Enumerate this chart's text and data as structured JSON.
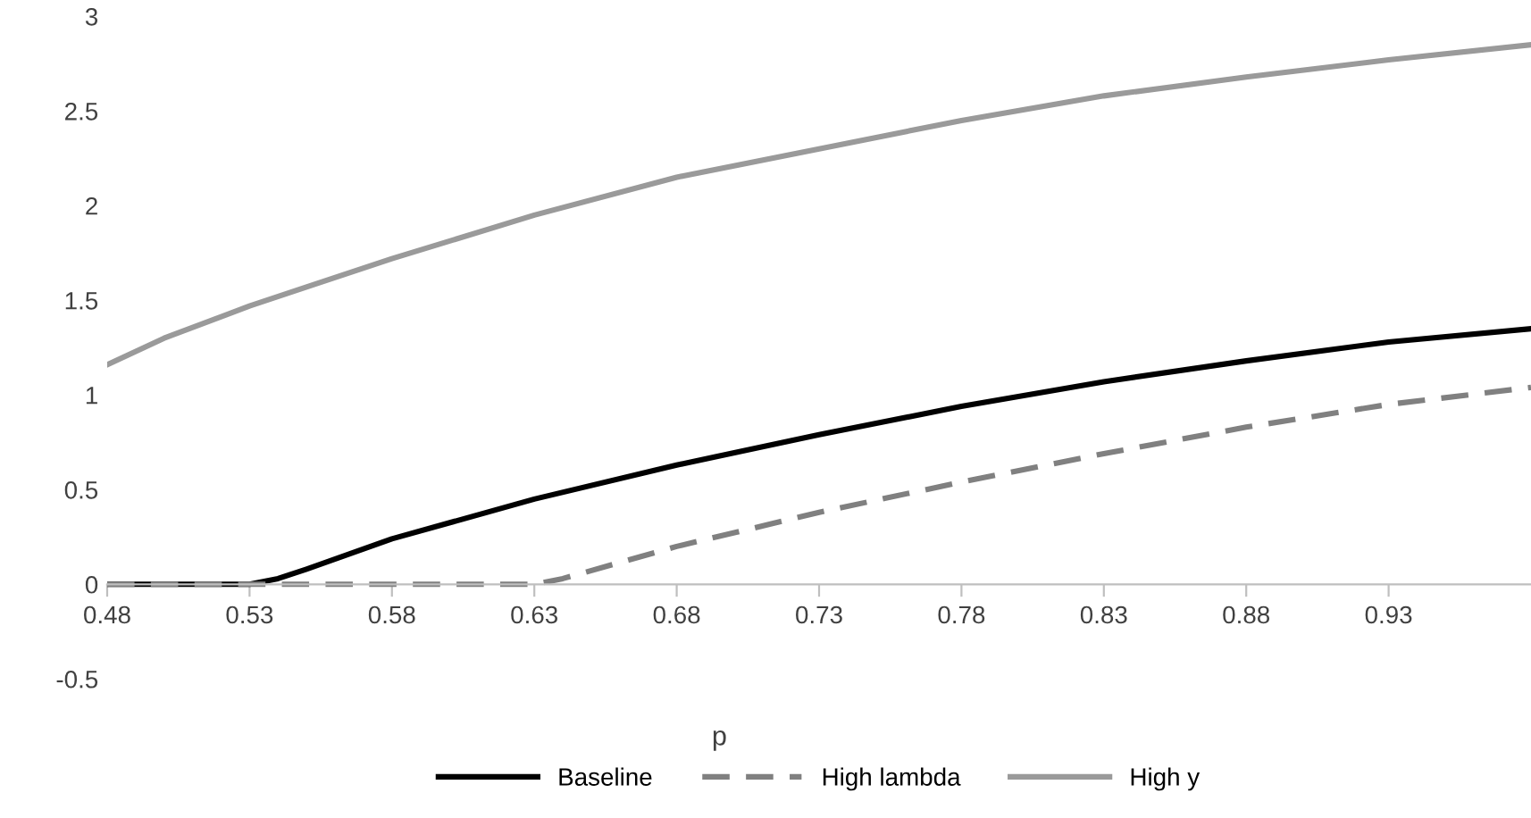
{
  "chart_data": {
    "type": "line",
    "xlabel": "p",
    "xlim": [
      0.48,
      0.98
    ],
    "xticks": [
      0.48,
      0.53,
      0.58,
      0.63,
      0.68,
      0.73,
      0.78,
      0.83,
      0.88,
      0.93
    ],
    "ylim": [
      -0.5,
      3
    ],
    "yticks": [
      -0.5,
      0,
      0.5,
      1,
      1.5,
      2,
      2.5,
      3
    ],
    "grid": false,
    "legend": "bottom",
    "series": [
      {
        "name": "Baseline",
        "color": "#000000",
        "line_style": "solid",
        "x": [
          0.48,
          0.53,
          0.54,
          0.55,
          0.58,
          0.63,
          0.68,
          0.73,
          0.78,
          0.83,
          0.88,
          0.93,
          0.98
        ],
        "values": [
          0,
          0,
          0.03,
          0.08,
          0.24,
          0.45,
          0.63,
          0.79,
          0.94,
          1.07,
          1.18,
          1.28,
          1.35
        ]
      },
      {
        "name": "High lambda",
        "color": "#808080",
        "line_style": "dashed",
        "x": [
          0.48,
          0.63,
          0.64,
          0.68,
          0.73,
          0.78,
          0.83,
          0.88,
          0.93,
          0.98
        ],
        "values": [
          0,
          0,
          0.03,
          0.2,
          0.38,
          0.54,
          0.69,
          0.83,
          0.95,
          1.04
        ]
      },
      {
        "name": "High y",
        "color": "#9a9a9a",
        "line_style": "solid",
        "x": [
          0.48,
          0.5,
          0.53,
          0.55,
          0.58,
          0.63,
          0.68,
          0.73,
          0.78,
          0.83,
          0.88,
          0.93,
          0.98
        ],
        "values": [
          1.16,
          1.3,
          1.47,
          1.57,
          1.72,
          1.95,
          2.15,
          2.3,
          2.45,
          2.58,
          2.68,
          2.77,
          2.85
        ]
      }
    ]
  }
}
